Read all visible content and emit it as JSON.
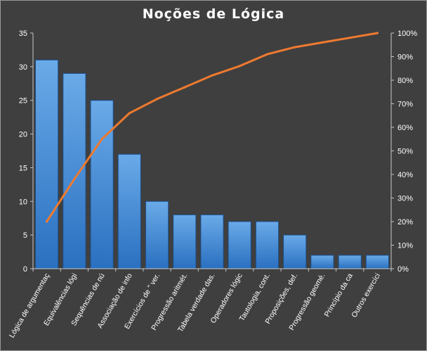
{
  "chart_data": {
    "type": "bar",
    "title": "Noções de Lógica",
    "categories": [
      "Lógica de argumentaç",
      "Equivalências lógi",
      "Sequências de nú",
      "Associação de info",
      "Exercícios de \" ver.",
      "Progressão aritmét.",
      "Tabela verdade das.",
      "Operadores lógic",
      "Tautologia, cont.",
      "Proposições, def.",
      "Progressão geomé.",
      "Princípio da ca",
      "Outros exercíci"
    ],
    "series": [
      {
        "values": [
          31,
          29,
          25,
          17,
          10,
          8,
          8,
          7,
          7,
          5,
          2,
          2,
          2
        ]
      },
      {
        "type": "line",
        "axis": "right",
        "values": [
          20,
          38,
          55,
          66,
          72,
          77,
          82,
          86,
          91,
          94,
          96,
          98,
          100
        ]
      }
    ],
    "ylim": [
      0,
      35
    ],
    "y_ticks": [
      "0",
      "5",
      "10",
      "15",
      "20",
      "25",
      "30",
      "35"
    ],
    "y2lim": [
      0,
      100
    ],
    "y2_ticks": [
      "0%",
      "10%",
      "20%",
      "30%",
      "40%",
      "50%",
      "60%",
      "70%",
      "80%",
      "90%",
      "100%"
    ],
    "grid": false,
    "legend": "none",
    "colors": {
      "background": "#3f3f3f",
      "bar_light": "#6aaae8",
      "bar_dark": "#2a70c0",
      "bar_edge": "#1c4f8c",
      "line": "#ee7a30",
      "axis": "#c8c8c8",
      "text": "#ffffff"
    }
  }
}
